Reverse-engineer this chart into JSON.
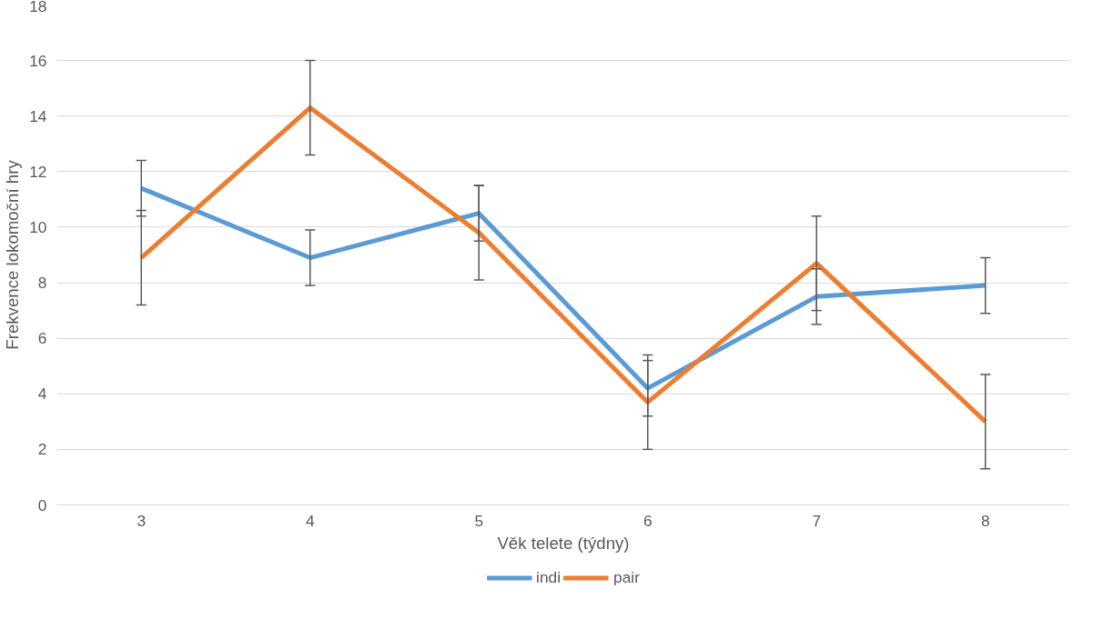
{
  "chart_data": {
    "type": "line",
    "xlabel": "Věk telete (týdny)",
    "ylabel": "Frekvence lokomoční hry",
    "categories": [
      "3",
      "4",
      "5",
      "6",
      "7",
      "8"
    ],
    "series": [
      {
        "name": "indi",
        "color": "#5b9bd5",
        "values": [
          11.4,
          8.9,
          10.5,
          4.2,
          7.5,
          7.9
        ],
        "errors": [
          1.0,
          1.0,
          1.0,
          1.0,
          1.0,
          1.0
        ]
      },
      {
        "name": "pair",
        "color": "#ed7d31",
        "values": [
          8.9,
          14.3,
          9.8,
          3.7,
          8.7,
          3.0
        ],
        "errors": [
          1.7,
          1.7,
          1.7,
          1.7,
          1.7,
          1.7
        ]
      }
    ],
    "ylim": [
      0,
      18
    ],
    "yticks": [
      0,
      2,
      4,
      6,
      8,
      10,
      12,
      14,
      16,
      18
    ],
    "grid": "y",
    "legend": "bottom",
    "marker": "none",
    "line_style": "solid"
  }
}
